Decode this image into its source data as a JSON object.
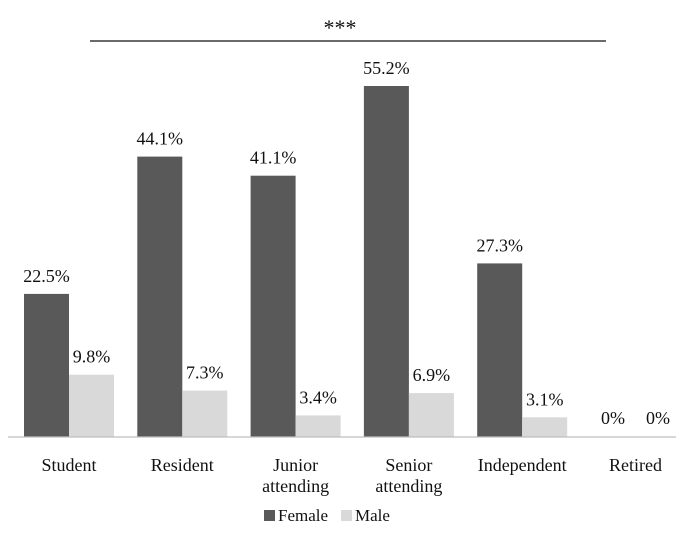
{
  "chart_data": {
    "type": "bar",
    "title": "",
    "xlabel": "",
    "ylabel": "",
    "categories": [
      [
        "Student"
      ],
      [
        "Resident"
      ],
      [
        "Junior",
        "attending"
      ],
      [
        "Senior",
        "attending"
      ],
      [
        "Independent"
      ],
      [
        "Retired"
      ]
    ],
    "series": [
      {
        "name": "Female",
        "color": "#595959",
        "values": [
          22.5,
          44.1,
          41.1,
          55.2,
          27.3,
          0
        ],
        "labels": [
          "22.5%",
          "44.1%",
          "41.1%",
          "55.2%",
          "27.3%",
          "0%"
        ]
      },
      {
        "name": "Male",
        "color": "#d9d9d9",
        "values": [
          9.8,
          7.3,
          3.4,
          6.9,
          3.1,
          0
        ],
        "labels": [
          "9.8%",
          "7.3%",
          "3.4%",
          "6.9%",
          "3.1%",
          "0%"
        ]
      }
    ],
    "ylim": [
      0,
      60
    ],
    "grid": false,
    "legend_position": "bottom",
    "annotation": {
      "text": "***",
      "span_from": "Student",
      "span_to": "Independent"
    }
  }
}
